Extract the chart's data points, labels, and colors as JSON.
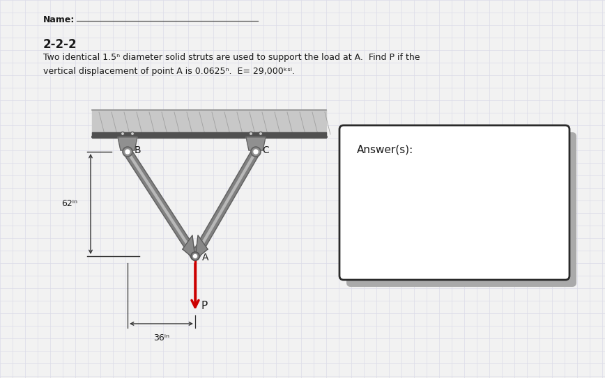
{
  "title": "2-2-2",
  "problem_line1": "Two identical 1.5ⁿ diameter solid struts are used to support the load at A.  Find P if the",
  "problem_line2": "vertical displacement of point A is 0.0625ⁿ.  E= 29,000ᵏˢᴵ.",
  "name_label": "Name:",
  "answer_label": "Answer(s):",
  "label_62": "62ⁱⁿ",
  "label_36": "36ⁱⁿ",
  "label_A": "A",
  "label_B": "B",
  "label_C": "C",
  "label_P": "P",
  "bg_color": "#f2f2f2",
  "grid_color": "#dcdce8",
  "strut_color": "#808080",
  "strut_highlight": "#b8b8b8",
  "plate_fill": "#c8c8c8",
  "plate_edge": "#505050",
  "bracket_fill": "#909090",
  "bracket_edge": "#606060",
  "gusset_fill": "#888888",
  "arrow_color": "#cc0000",
  "text_color": "#1a1a1a",
  "dim_color": "#333333",
  "answer_box_fill": "#ffffff",
  "answer_box_edge": "#2a2a2a",
  "answer_shadow": "#aaaaaa",
  "name_line_color": "#555555"
}
